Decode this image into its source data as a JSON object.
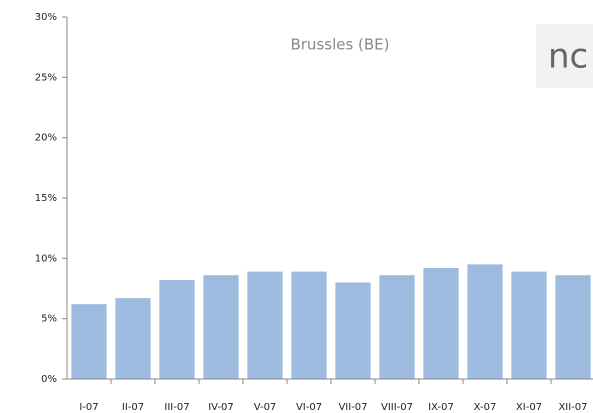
{
  "chart_data": {
    "type": "bar",
    "title": "Brussles (BE)",
    "annotation": "nc",
    "categories": [
      "I-07",
      "II-07",
      "III-07",
      "IV-07",
      "V-07",
      "VI-07",
      "VII-07",
      "VIII-07",
      "IX-07",
      "X-07",
      "XI-07",
      "XII-07"
    ],
    "values": [
      6.2,
      6.7,
      8.2,
      8.6,
      8.9,
      8.9,
      8.0,
      8.6,
      9.2,
      9.5,
      8.9,
      8.6
    ],
    "color": "#9dbadf",
    "ylim": [
      0,
      30
    ],
    "yticks": [
      {
        "value": 0,
        "label": "0%"
      },
      {
        "value": 5,
        "label": "5%"
      },
      {
        "value": 10,
        "label": "10%"
      },
      {
        "value": 15,
        "label": "15%"
      },
      {
        "value": 20,
        "label": "20%"
      },
      {
        "value": 25,
        "label": "25%"
      },
      {
        "value": 30,
        "label": "30%"
      }
    ]
  }
}
